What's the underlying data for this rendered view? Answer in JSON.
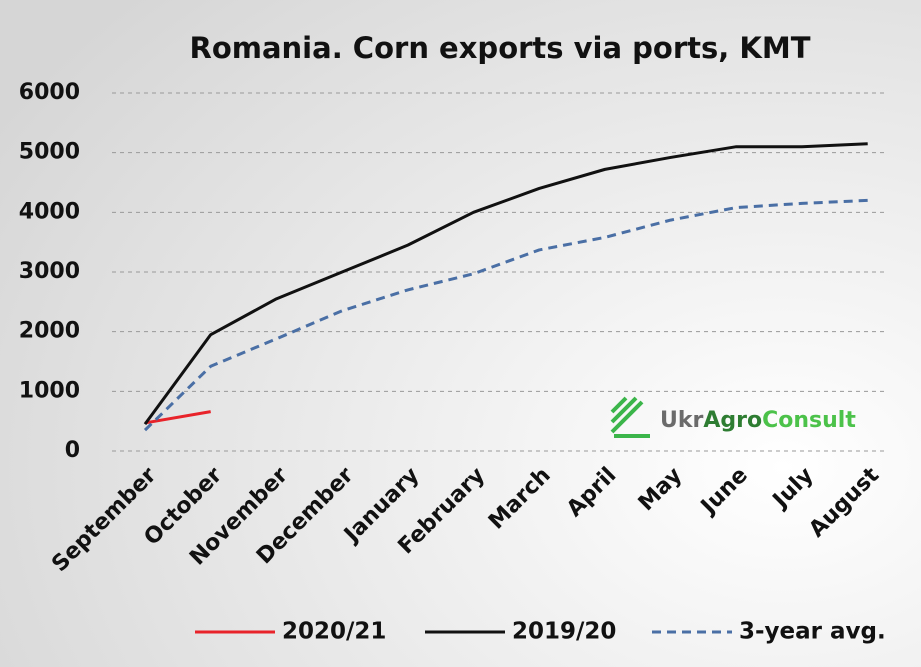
{
  "chart_data": {
    "type": "line",
    "title": "Romania. Corn exports via ports, KMT",
    "categories": [
      "September",
      "October",
      "November",
      "December",
      "January",
      "February",
      "March",
      "April",
      "May",
      "June",
      "July",
      "August"
    ],
    "series": [
      {
        "name": "2020/21",
        "color": "#e8232a",
        "dash": false,
        "values": [
          470,
          660,
          null,
          null,
          null,
          null,
          null,
          null,
          null,
          null,
          null,
          null
        ]
      },
      {
        "name": "2019/20",
        "color": "#111111",
        "dash": false,
        "values": [
          450,
          1950,
          2550,
          3000,
          3450,
          4000,
          4400,
          4720,
          4920,
          5100,
          5100,
          5150
        ]
      },
      {
        "name": "3-year avg.",
        "color": "#4a6fa5",
        "dash": true,
        "values": [
          350,
          1420,
          1880,
          2350,
          2700,
          2970,
          3370,
          3580,
          3870,
          4080,
          4150,
          4200
        ]
      }
    ],
    "ylim": [
      0,
      6000
    ],
    "yticks": [
      0,
      1000,
      2000,
      3000,
      4000,
      5000,
      6000
    ],
    "grid": true,
    "watermark": [
      "Ukr",
      "Agro",
      "Consult"
    ]
  }
}
